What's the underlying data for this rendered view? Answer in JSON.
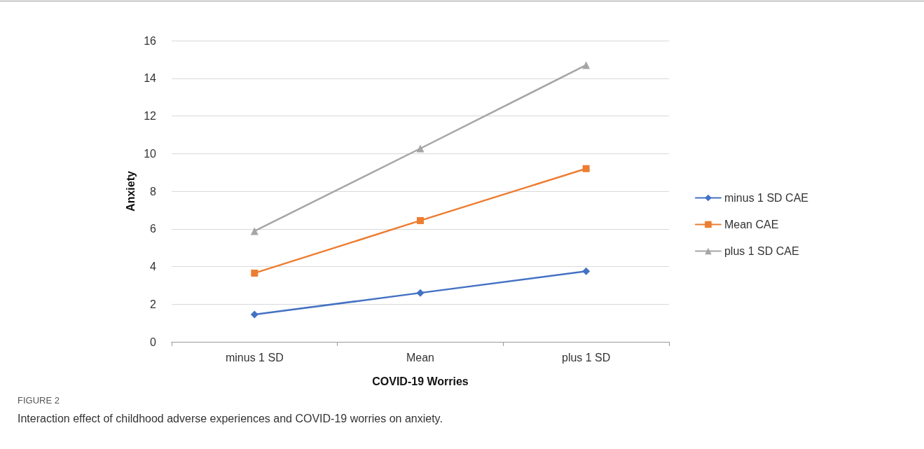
{
  "chart_data": {
    "type": "line",
    "xlabel": "COVID-19 Worries",
    "ylabel": "Anxiety",
    "categories": [
      "minus 1 SD",
      "Mean",
      "plus 1 SD"
    ],
    "series": [
      {
        "name": "minus 1 SD CAE",
        "color": "#4472c4",
        "marker": "diamond",
        "values": [
          1.45,
          2.6,
          3.75
        ]
      },
      {
        "name": "Mean CAE",
        "color": "#ed7d31",
        "marker": "square",
        "values": [
          3.65,
          6.44,
          9.2
        ]
      },
      {
        "name": "plus 1 SD CAE",
        "color": "#a5a5a5",
        "marker": "triangle",
        "values": [
          5.88,
          10.27,
          14.7
        ]
      }
    ],
    "ylim": [
      0,
      16
    ],
    "yticks": [
      0,
      2,
      4,
      6,
      8,
      10,
      12,
      14,
      16
    ],
    "grid": "y",
    "legend": "right",
    "line_style": "solid",
    "annotations": [
      "FIGURE 2",
      "Interaction effect of childhood adverse experiences and COVID-19 worries on anxiety."
    ]
  }
}
